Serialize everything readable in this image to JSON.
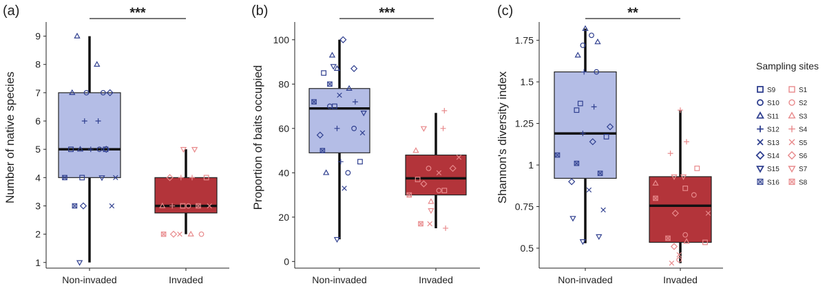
{
  "colors": {
    "noninvaded_fill": "#b4bde6",
    "invaded_fill": "#b3343a",
    "noninvaded_points": "#2f3f8f",
    "invaded_points": "#e8898b",
    "box_stroke": "#222222"
  },
  "chart_data": [
    {
      "type": "box",
      "panel_label": "(a)",
      "ylabel": "Number of native species",
      "categories": [
        "Non-invaded",
        "Invaded"
      ],
      "ylim": [
        0.8,
        9.5
      ],
      "yticks": [
        1,
        2,
        3,
        4,
        5,
        6,
        7,
        8,
        9
      ],
      "significance": "***",
      "boxes": [
        {
          "group": "Non-invaded",
          "whisker_low": 1,
          "q1": 4,
          "median": 5,
          "q3": 7,
          "whisker_high": 9
        },
        {
          "group": "Invaded",
          "whisker_low": 2,
          "q1": 2.75,
          "median": 3,
          "q3": 4,
          "whisker_high": 5
        }
      ],
      "points": [
        {
          "group": "Non-invaded",
          "site": "S9",
          "x": -0.3,
          "y": 5
        },
        {
          "group": "Non-invaded",
          "site": "S9",
          "x": 0.26,
          "y": 5
        },
        {
          "group": "Non-invaded",
          "site": "S9",
          "x": -0.12,
          "y": 4
        },
        {
          "group": "Non-invaded",
          "site": "S10",
          "x": -0.05,
          "y": 7
        },
        {
          "group": "Non-invaded",
          "site": "S10",
          "x": 0.22,
          "y": 7
        },
        {
          "group": "Non-invaded",
          "site": "S10",
          "x": 0.16,
          "y": 5
        },
        {
          "group": "Non-invaded",
          "site": "S11",
          "x": -0.2,
          "y": 9
        },
        {
          "group": "Non-invaded",
          "site": "S11",
          "x": 0.12,
          "y": 8
        },
        {
          "group": "Non-invaded",
          "site": "S11",
          "x": -0.28,
          "y": 7
        },
        {
          "group": "Non-invaded",
          "site": "S11",
          "x": -0.15,
          "y": 5
        },
        {
          "group": "Non-invaded",
          "site": "S12",
          "x": -0.08,
          "y": 6
        },
        {
          "group": "Non-invaded",
          "site": "S12",
          "x": 0.14,
          "y": 6
        },
        {
          "group": "Non-invaded",
          "site": "S12",
          "x": 0.02,
          "y": 5
        },
        {
          "group": "Non-invaded",
          "site": "S13",
          "x": 0.42,
          "y": 4
        },
        {
          "group": "Non-invaded",
          "site": "S13",
          "x": 0.36,
          "y": 3
        },
        {
          "group": "Non-invaded",
          "site": "S14",
          "x": 0.33,
          "y": 7
        },
        {
          "group": "Non-invaded",
          "site": "S14",
          "x": 0.27,
          "y": 5
        },
        {
          "group": "Non-invaded",
          "site": "S14",
          "x": -0.1,
          "y": 3
        },
        {
          "group": "Non-invaded",
          "site": "S15",
          "x": -0.16,
          "y": 1
        },
        {
          "group": "Non-invaded",
          "site": "S15",
          "x": 0.2,
          "y": 4
        },
        {
          "group": "Non-invaded",
          "site": "S16",
          "x": -0.4,
          "y": 4
        },
        {
          "group": "Non-invaded",
          "site": "S16",
          "x": -0.24,
          "y": 3
        },
        {
          "group": "Invaded",
          "site": "S1",
          "x": 0.33,
          "y": 4
        },
        {
          "group": "Invaded",
          "site": "S1",
          "x": -0.05,
          "y": 3
        },
        {
          "group": "Invaded",
          "site": "S2",
          "x": 0.25,
          "y": 2
        },
        {
          "group": "Invaded",
          "site": "S2",
          "x": 0.04,
          "y": 3
        },
        {
          "group": "Invaded",
          "site": "S3",
          "x": -0.38,
          "y": 3
        },
        {
          "group": "Invaded",
          "site": "S3",
          "x": 0.08,
          "y": 2
        },
        {
          "group": "Invaded",
          "site": "S4",
          "x": -0.08,
          "y": 4
        },
        {
          "group": "Invaded",
          "site": "S4",
          "x": 0.1,
          "y": 4
        },
        {
          "group": "Invaded",
          "site": "S4",
          "x": -0.22,
          "y": 3
        },
        {
          "group": "Invaded",
          "site": "S5",
          "x": -0.1,
          "y": 2
        },
        {
          "group": "Invaded",
          "site": "S5",
          "x": 0.38,
          "y": 3
        },
        {
          "group": "Invaded",
          "site": "S6",
          "x": -0.26,
          "y": 4
        },
        {
          "group": "Invaded",
          "site": "S6",
          "x": -0.2,
          "y": 2
        },
        {
          "group": "Invaded",
          "site": "S7",
          "x": -0.04,
          "y": 5
        },
        {
          "group": "Invaded",
          "site": "S7",
          "x": 0.14,
          "y": 5
        },
        {
          "group": "Invaded",
          "site": "S8",
          "x": -0.36,
          "y": 2
        },
        {
          "group": "Invaded",
          "site": "S8",
          "x": 0.2,
          "y": 3
        }
      ]
    },
    {
      "type": "box",
      "panel_label": "(b)",
      "ylabel": "Proportion of baits occupied",
      "categories": [
        "Non-invaded",
        "Invaded"
      ],
      "ylim": [
        -3,
        108
      ],
      "yticks": [
        0,
        20,
        40,
        60,
        80,
        100
      ],
      "significance": "***",
      "boxes": [
        {
          "group": "Non-invaded",
          "whisker_low": 10,
          "q1": 49,
          "median": 69,
          "q3": 78,
          "whisker_high": 100
        },
        {
          "group": "Invaded",
          "whisker_low": 15,
          "q1": 30,
          "median": 37.5,
          "q3": 48,
          "whisker_high": 67
        }
      ],
      "points": [
        {
          "group": "Non-invaded",
          "site": "S9",
          "x": -0.26,
          "y": 85
        },
        {
          "group": "Non-invaded",
          "site": "S9",
          "x": -0.08,
          "y": 70
        },
        {
          "group": "Non-invaded",
          "site": "S9",
          "x": 0.34,
          "y": 45
        },
        {
          "group": "Non-invaded",
          "site": "S10",
          "x": -0.16,
          "y": 70
        },
        {
          "group": "Non-invaded",
          "site": "S10",
          "x": 0.24,
          "y": 60
        },
        {
          "group": "Non-invaded",
          "site": "S10",
          "x": 0.14,
          "y": 40
        },
        {
          "group": "Non-invaded",
          "site": "S11",
          "x": -0.12,
          "y": 93
        },
        {
          "group": "Non-invaded",
          "site": "S11",
          "x": -0.04,
          "y": 87
        },
        {
          "group": "Non-invaded",
          "site": "S11",
          "x": 0.16,
          "y": 78
        },
        {
          "group": "Non-invaded",
          "site": "S11",
          "x": -0.22,
          "y": 40
        },
        {
          "group": "Non-invaded",
          "site": "S12",
          "x": 0.26,
          "y": 72
        },
        {
          "group": "Non-invaded",
          "site": "S12",
          "x": -0.04,
          "y": 60
        },
        {
          "group": "Non-invaded",
          "site": "S12",
          "x": 0.02,
          "y": 45
        },
        {
          "group": "Non-invaded",
          "site": "S13",
          "x": 0.0,
          "y": 75
        },
        {
          "group": "Non-invaded",
          "site": "S13",
          "x": 0.38,
          "y": 58
        },
        {
          "group": "Non-invaded",
          "site": "S13",
          "x": 0.08,
          "y": 33
        },
        {
          "group": "Non-invaded",
          "site": "S14",
          "x": 0.06,
          "y": 100
        },
        {
          "group": "Non-invaded",
          "site": "S14",
          "x": 0.24,
          "y": 87
        },
        {
          "group": "Non-invaded",
          "site": "S14",
          "x": -0.32,
          "y": 57
        },
        {
          "group": "Non-invaded",
          "site": "S15",
          "x": -0.1,
          "y": 88
        },
        {
          "group": "Non-invaded",
          "site": "S15",
          "x": 0.4,
          "y": 67
        },
        {
          "group": "Non-invaded",
          "site": "S15",
          "x": -0.04,
          "y": 10
        },
        {
          "group": "Non-invaded",
          "site": "S16",
          "x": -0.16,
          "y": 80
        },
        {
          "group": "Non-invaded",
          "site": "S16",
          "x": -0.42,
          "y": 72
        },
        {
          "group": "Non-invaded",
          "site": "S16",
          "x": -0.28,
          "y": 50
        },
        {
          "group": "Invaded",
          "site": "S1",
          "x": -0.3,
          "y": 37
        },
        {
          "group": "Invaded",
          "site": "S1",
          "x": 0.14,
          "y": 32
        },
        {
          "group": "Invaded",
          "site": "S2",
          "x": -0.12,
          "y": 42
        },
        {
          "group": "Invaded",
          "site": "S2",
          "x": 0.05,
          "y": 32
        },
        {
          "group": "Invaded",
          "site": "S3",
          "x": -0.33,
          "y": 50
        },
        {
          "group": "Invaded",
          "site": "S3",
          "x": -0.08,
          "y": 27
        },
        {
          "group": "Invaded",
          "site": "S4",
          "x": 0.14,
          "y": 68
        },
        {
          "group": "Invaded",
          "site": "S4",
          "x": 0.12,
          "y": 60
        },
        {
          "group": "Invaded",
          "site": "S4",
          "x": 0.16,
          "y": 15
        },
        {
          "group": "Invaded",
          "site": "S5",
          "x": 0.05,
          "y": 40
        },
        {
          "group": "Invaded",
          "site": "S5",
          "x": 0.38,
          "y": 47
        },
        {
          "group": "Invaded",
          "site": "S5",
          "x": -0.1,
          "y": 17
        },
        {
          "group": "Invaded",
          "site": "S6",
          "x": 0.28,
          "y": 42
        },
        {
          "group": "Invaded",
          "site": "S6",
          "x": -0.2,
          "y": 35
        },
        {
          "group": "Invaded",
          "site": "S7",
          "x": -0.2,
          "y": 60
        },
        {
          "group": "Invaded",
          "site": "S7",
          "x": -0.08,
          "y": 23
        },
        {
          "group": "Invaded",
          "site": "S8",
          "x": -0.44,
          "y": 30
        },
        {
          "group": "Invaded",
          "site": "S8",
          "x": -0.25,
          "y": 17
        }
      ]
    },
    {
      "type": "box",
      "panel_label": "(c)",
      "ylabel": "Shannon's diversity index",
      "categories": [
        "Non-invaded",
        "Invaded"
      ],
      "ylim": [
        0.38,
        1.86
      ],
      "yticks": [
        0.5,
        0.75,
        1.0,
        1.25,
        1.5,
        1.75
      ],
      "ytick_labels": [
        "0.5",
        "0.75",
        "1",
        "1.25",
        "1.5",
        "1.75"
      ],
      "significance": "**",
      "boxes": [
        {
          "group": "Non-invaded",
          "whisker_low": 0.53,
          "q1": 0.92,
          "median": 1.19,
          "q3": 1.56,
          "whisker_high": 1.82
        },
        {
          "group": "Invaded",
          "whisker_low": 0.41,
          "q1": 0.535,
          "median": 0.755,
          "q3": 0.93,
          "whisker_high": 1.33
        }
      ],
      "points": [
        {
          "group": "Non-invaded",
          "site": "S9",
          "x": -0.14,
          "y": 1.33
        },
        {
          "group": "Non-invaded",
          "site": "S9",
          "x": -0.08,
          "y": 1.37
        },
        {
          "group": "Non-invaded",
          "site": "S9",
          "x": 0.34,
          "y": 1.17
        },
        {
          "group": "Non-invaded",
          "site": "S10",
          "x": -0.04,
          "y": 1.72
        },
        {
          "group": "Non-invaded",
          "site": "S10",
          "x": 0.1,
          "y": 1.78
        },
        {
          "group": "Non-invaded",
          "site": "S10",
          "x": 0.18,
          "y": 1.56
        },
        {
          "group": "Non-invaded",
          "site": "S11",
          "x": -0.12,
          "y": 1.66
        },
        {
          "group": "Non-invaded",
          "site": "S11",
          "x": 0.0,
          "y": 1.82
        },
        {
          "group": "Non-invaded",
          "site": "S11",
          "x": 0.2,
          "y": 1.74
        },
        {
          "group": "Non-invaded",
          "site": "S12",
          "x": -0.02,
          "y": 1.56
        },
        {
          "group": "Non-invaded",
          "site": "S12",
          "x": 0.14,
          "y": 1.35
        },
        {
          "group": "Non-invaded",
          "site": "S12",
          "x": -0.04,
          "y": 1.19
        },
        {
          "group": "Non-invaded",
          "site": "S13",
          "x": 0.06,
          "y": 0.85
        },
        {
          "group": "Non-invaded",
          "site": "S13",
          "x": 0.29,
          "y": 0.73
        },
        {
          "group": "Non-invaded",
          "site": "S14",
          "x": 0.12,
          "y": 1.14
        },
        {
          "group": "Non-invaded",
          "site": "S14",
          "x": 0.4,
          "y": 1.23
        },
        {
          "group": "Non-invaded",
          "site": "S14",
          "x": -0.22,
          "y": 0.9
        },
        {
          "group": "Non-invaded",
          "site": "S15",
          "x": -0.2,
          "y": 0.68
        },
        {
          "group": "Non-invaded",
          "site": "S15",
          "x": 0.22,
          "y": 0.57
        },
        {
          "group": "Non-invaded",
          "site": "S15",
          "x": -0.04,
          "y": 0.54
        },
        {
          "group": "Non-invaded",
          "site": "S16",
          "x": -0.45,
          "y": 1.06
        },
        {
          "group": "Non-invaded",
          "site": "S16",
          "x": -0.14,
          "y": 1.01
        },
        {
          "group": "Non-invaded",
          "site": "S16",
          "x": 0.24,
          "y": 0.95
        },
        {
          "group": "Invaded",
          "site": "S1",
          "x": 0.08,
          "y": 0.86
        },
        {
          "group": "Invaded",
          "site": "S1",
          "x": 0.27,
          "y": 0.98
        },
        {
          "group": "Invaded",
          "site": "S1",
          "x": 0.4,
          "y": 0.535
        },
        {
          "group": "Invaded",
          "site": "S2",
          "x": 0.22,
          "y": 0.82
        },
        {
          "group": "Invaded",
          "site": "S2",
          "x": 0.08,
          "y": 0.58
        },
        {
          "group": "Invaded",
          "site": "S2",
          "x": -0.02,
          "y": 0.43
        },
        {
          "group": "Invaded",
          "site": "S3",
          "x": -0.4,
          "y": 0.89
        },
        {
          "group": "Invaded",
          "site": "S3",
          "x": 0.1,
          "y": 0.54
        },
        {
          "group": "Invaded",
          "site": "S4",
          "x": 0.0,
          "y": 1.33
        },
        {
          "group": "Invaded",
          "site": "S4",
          "x": -0.16,
          "y": 1.07
        },
        {
          "group": "Invaded",
          "site": "S4",
          "x": 0.1,
          "y": 1.14
        },
        {
          "group": "Invaded",
          "site": "S5",
          "x": 0.45,
          "y": 0.71
        },
        {
          "group": "Invaded",
          "site": "S5",
          "x": -0.14,
          "y": 0.41
        },
        {
          "group": "Invaded",
          "site": "S5",
          "x": -0.02,
          "y": 0.46
        },
        {
          "group": "Invaded",
          "site": "S6",
          "x": -0.08,
          "y": 0.71
        },
        {
          "group": "Invaded",
          "site": "S6",
          "x": -0.1,
          "y": 0.51
        },
        {
          "group": "Invaded",
          "site": "S7",
          "x": -0.1,
          "y": 0.93
        },
        {
          "group": "Invaded",
          "site": "S7",
          "x": 0.05,
          "y": 0.93
        },
        {
          "group": "Invaded",
          "site": "S8",
          "x": -0.4,
          "y": 0.8
        },
        {
          "group": "Invaded",
          "site": "S8",
          "x": -0.2,
          "y": 0.56
        }
      ]
    }
  ],
  "legend": {
    "title": "Sampling sites",
    "placement": "right",
    "left_column": [
      {
        "label": "S9",
        "shape": "square"
      },
      {
        "label": "S10",
        "shape": "circle"
      },
      {
        "label": "S11",
        "shape": "triangle"
      },
      {
        "label": "S12",
        "shape": "plus"
      },
      {
        "label": "S13",
        "shape": "cross"
      },
      {
        "label": "S14",
        "shape": "diamond"
      },
      {
        "label": "S15",
        "shape": "triangle-down"
      },
      {
        "label": "S16",
        "shape": "square-cross"
      }
    ],
    "right_column": [
      {
        "label": "S1",
        "shape": "square"
      },
      {
        "label": "S2",
        "shape": "circle"
      },
      {
        "label": "S3",
        "shape": "triangle"
      },
      {
        "label": "S4",
        "shape": "plus"
      },
      {
        "label": "S5",
        "shape": "cross"
      },
      {
        "label": "S6",
        "shape": "diamond"
      },
      {
        "label": "S7",
        "shape": "triangle-down"
      },
      {
        "label": "S8",
        "shape": "square-cross"
      }
    ]
  }
}
